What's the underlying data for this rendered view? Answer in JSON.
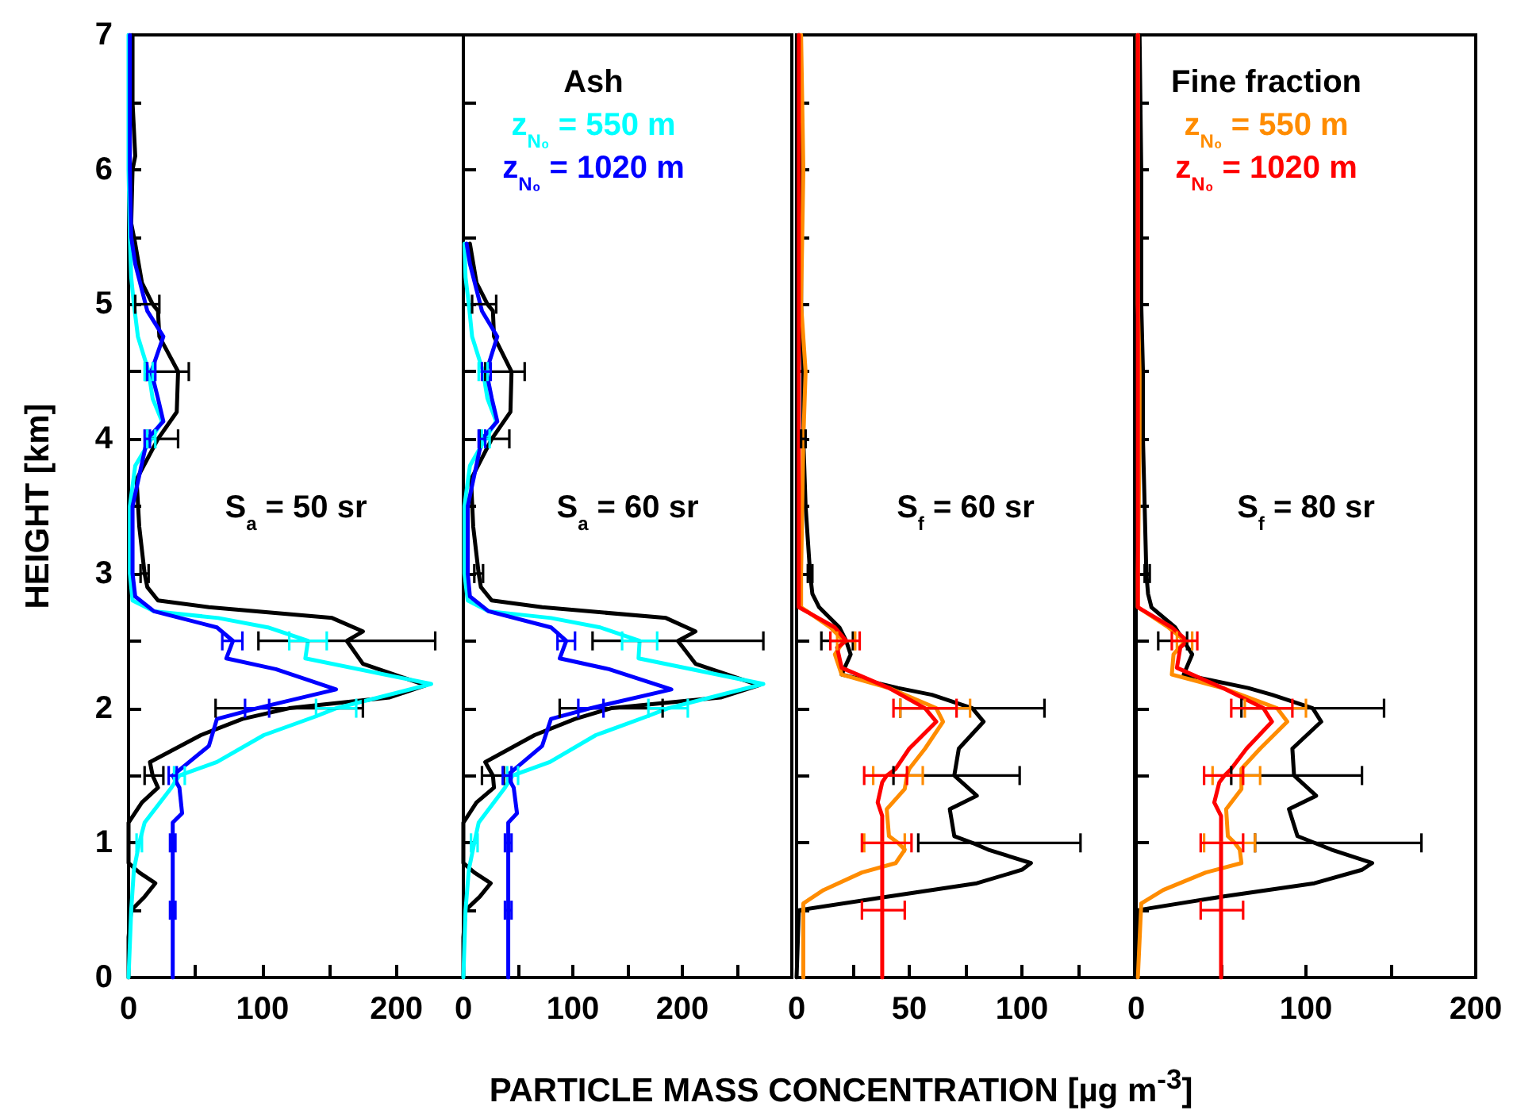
{
  "chart_data": [
    {
      "type": "line",
      "marker": "none",
      "xlabel": "PARTICLE MASS CONCENTRATION [µg m$^{-3}$]",
      "ylabel": "HEIGHT [km]",
      "annotations": [
        "S$_{a}$ = 50 sr"
      ],
      "xlim": [
        0,
        250
      ],
      "xticks": [
        0,
        {
          "value": 50,
          "label": null
        },
        100,
        {
          "value": 150,
          "label": null
        },
        200,
        {
          "value": 250,
          "label": null
        }
      ],
      "ylim": [
        0,
        7
      ],
      "yticks": [
        0,
        {
          "value": 0.5,
          "label": null
        },
        1,
        {
          "value": 1.5,
          "label": null
        },
        2,
        {
          "value": 2.5,
          "label": null
        },
        3,
        {
          "value": 3.5,
          "label": null
        },
        4,
        {
          "value": 4.5,
          "label": null
        },
        5,
        {
          "value": 5.5,
          "label": null
        },
        6,
        {
          "value": 6.5,
          "label": null
        },
        7
      ],
      "series": [
        {
          "color": "#000000",
          "values": [
            0,
            0.3,
            0.5,
            0.6,
            0.7,
            0.78,
            0.85,
            1,
            1.15,
            1.3,
            1.41,
            1.5,
            1.6,
            1.8,
            1.92,
            2,
            2.08,
            2.17,
            2.33,
            2.5,
            2.57,
            2.67,
            2.75,
            2.8,
            2.9,
            3,
            3.35,
            3.7,
            4,
            4.2,
            4.5,
            4.76,
            4.95,
            5,
            5.16,
            5.45,
            5.6,
            6,
            6.1,
            6.5,
            7
          ],
          "x": [
            0,
            0,
            2,
            12,
            20,
            8,
            0,
            0,
            0,
            10,
            22,
            18,
            16,
            54,
            85,
            120,
            195,
            222,
            175,
            163,
            175,
            152,
            60,
            22,
            14,
            12,
            8,
            6,
            22,
            36,
            37,
            23,
            22,
            18,
            10,
            5,
            2,
            3,
            5,
            3,
            3
          ],
          "xerrors": [
            null,
            null,
            null,
            null,
            null,
            null,
            null,
            null,
            null,
            null,
            null,
            [
              12,
              26
            ],
            null,
            null,
            null,
            [
              65,
              175
            ],
            null,
            null,
            null,
            [
              97,
              229
            ],
            null,
            null,
            null,
            null,
            null,
            [
              9,
              15
            ],
            null,
            null,
            [
              14,
              37
            ],
            null,
            [
              13,
              45
            ],
            null,
            null,
            [
              5,
              23
            ],
            null,
            null,
            null,
            null,
            null,
            null,
            null
          ]
        },
        {
          "color": "#00ffff",
          "values": [
            0,
            0.5,
            0.8,
            1,
            1.15,
            1.41,
            1.5,
            1.6,
            1.8,
            1.94,
            2,
            2.18,
            2.37,
            2.5,
            2.6,
            2.67,
            2.72,
            2.8,
            3,
            3.5,
            3.8,
            4,
            4.13,
            4.3,
            4.5,
            4.76,
            5,
            5.2,
            5.5,
            6,
            7
          ],
          "x": [
            0,
            2,
            4,
            8,
            12,
            32,
            38,
            66,
            101,
            140,
            155,
            226,
            132,
            134,
            104,
            67,
            19,
            3,
            1,
            1,
            5,
            17,
            25,
            18,
            15,
            7,
            4,
            2,
            1,
            0,
            0
          ],
          "xerrors": [
            null,
            null,
            null,
            [
              6,
              10
            ],
            null,
            null,
            [
              34,
              42
            ],
            null,
            null,
            null,
            [
              140,
              170
            ],
            null,
            null,
            [
              120,
              148
            ],
            null,
            null,
            null,
            null,
            null,
            null,
            null,
            [
              14,
              20
            ],
            null,
            null,
            [
              12,
              18
            ],
            null,
            null,
            null,
            null,
            null,
            null
          ]
        },
        {
          "color": "#0000ff",
          "values": [
            0,
            0.5,
            1,
            1.15,
            1.22,
            1.41,
            1.5,
            1.72,
            1.92,
            2,
            2.14,
            2.29,
            2.37,
            2.5,
            2.6,
            2.72,
            2.83,
            3,
            3.5,
            4,
            4.13,
            4.3,
            4.5,
            4.76,
            4.95,
            5.3,
            5.5,
            6,
            7
          ],
          "x": [
            33,
            33,
            33,
            33,
            40,
            38,
            33,
            60,
            66,
            96,
            155,
            110,
            73,
            78,
            66,
            19,
            5,
            3,
            3,
            14,
            26,
            22,
            17,
            26,
            14,
            5,
            2,
            1,
            1
          ],
          "xerrors": [
            null,
            [
              31,
              35
            ],
            [
              31,
              35
            ],
            null,
            null,
            null,
            [
              30,
              36
            ],
            null,
            null,
            [
              87,
              105
            ],
            null,
            null,
            null,
            [
              70,
              85
            ],
            null,
            null,
            null,
            null,
            null,
            [
              12,
              16
            ],
            null,
            null,
            [
              14,
              20
            ],
            null,
            null,
            null,
            null,
            null,
            null
          ]
        }
      ]
    },
    {
      "type": "line",
      "legend_title": "Ash",
      "legend": "top left",
      "marker": "none",
      "tick_labels": "x",
      "annotations": [
        "S$_{a}$ = 60 sr"
      ],
      "xlim": [
        0,
        300
      ],
      "xticks": [
        0,
        {
          "value": 50,
          "label": null
        },
        100,
        {
          "value": 150,
          "label": null
        },
        200,
        {
          "value": 250,
          "label": null
        },
        {
          "value": 300,
          "label": null
        }
      ],
      "ylim": [
        0,
        7
      ],
      "yticks": [
        0,
        0.5,
        1,
        1.5,
        2,
        2.5,
        3,
        3.5,
        4,
        4.5,
        5,
        5.5,
        6,
        6.5,
        7
      ],
      "series": [
        {
          "color": "#000000",
          "values": [
            0,
            0.3,
            0.5,
            0.6,
            0.7,
            0.78,
            0.85,
            1.15,
            1.3,
            1.41,
            1.5,
            1.6,
            1.8,
            1.92,
            2,
            2.08,
            2.17,
            2.33,
            2.5,
            2.57,
            2.67,
            2.75,
            2.8,
            2.9,
            3,
            3.35,
            3.7,
            4,
            4.2,
            4.5,
            4.76,
            4.95,
            5,
            5.16,
            5.45
          ],
          "x": [
            0,
            0,
            2,
            15,
            25,
            10,
            0,
            0,
            12,
            28,
            27,
            20,
            65,
            102,
            135,
            235,
            270,
            212,
            196,
            212,
            185,
            72,
            26,
            16,
            14,
            9,
            7,
            26,
            43,
            44,
            28,
            27,
            22,
            12,
            6
          ],
          "xerrors": [
            null,
            null,
            null,
            null,
            null,
            null,
            null,
            null,
            null,
            null,
            [
              17,
              37
            ],
            null,
            null,
            null,
            [
              88,
              182
            ],
            null,
            null,
            null,
            [
              118,
              274
            ],
            null,
            null,
            null,
            null,
            null,
            [
              10,
              18
            ],
            null,
            null,
            [
              15,
              42
            ],
            null,
            [
              20,
              56
            ],
            null,
            null,
            [
              8,
              30
            ],
            null,
            null
          ]
        },
        {
          "name": "z$_{N₀}$ = 550 m",
          "color": "#00ffff",
          "values": [
            0,
            0.5,
            0.8,
            1,
            1.15,
            1.41,
            1.5,
            1.6,
            1.8,
            1.94,
            2,
            2.18,
            2.37,
            2.5,
            2.6,
            2.67,
            2.72,
            2.8,
            3,
            3.5,
            3.8,
            4,
            4.13,
            4.3,
            4.5,
            4.76,
            5,
            5.2,
            5.45
          ],
          "x": [
            0,
            2,
            5,
            10,
            14,
            38,
            45,
            79,
            121,
            168,
            187,
            274,
            160,
            161,
            125,
            80,
            23,
            4,
            1,
            1,
            6,
            20,
            30,
            22,
            18,
            8,
            5,
            2,
            1
          ],
          "xerrors": [
            null,
            null,
            null,
            [
              7,
              13
            ],
            null,
            null,
            [
              40,
              50
            ],
            null,
            null,
            null,
            [
              169,
              205
            ],
            null,
            null,
            [
              145,
              177
            ],
            null,
            null,
            null,
            null,
            null,
            null,
            null,
            [
              17,
              24
            ],
            null,
            null,
            [
              14,
              22
            ],
            null,
            null,
            null,
            null
          ]
        },
        {
          "name": "z$_{N₀}$ = 1020 m",
          "color": "#0000ff",
          "values": [
            0,
            0.5,
            1,
            1.15,
            1.22,
            1.41,
            1.5,
            1.72,
            1.92,
            2,
            2.14,
            2.29,
            2.37,
            2.5,
            2.6,
            2.72,
            2.83,
            3,
            3.5,
            4,
            4.13,
            4.3,
            4.5,
            4.76,
            4.95,
            5.3,
            5.45
          ],
          "x": [
            41,
            41,
            41,
            41,
            49,
            46,
            40,
            72,
            80,
            116,
            190,
            133,
            88,
            94,
            80,
            23,
            6,
            4,
            4,
            17,
            31,
            26,
            21,
            31,
            17,
            6,
            3
          ],
          "xerrors": [
            null,
            [
              38,
              44
            ],
            [
              38,
              44
            ],
            null,
            null,
            null,
            [
              36,
              44
            ],
            null,
            null,
            [
              105,
              128
            ],
            null,
            null,
            null,
            [
              86,
              102
            ],
            null,
            null,
            null,
            null,
            null,
            [
              14,
              20
            ],
            null,
            null,
            [
              17,
              25
            ],
            null,
            null,
            null,
            null
          ]
        }
      ]
    },
    {
      "type": "line",
      "marker": "none",
      "tick_labels": "x",
      "annotations": [
        "S$_{f}$ = 60 sr"
      ],
      "xlim": [
        0,
        150
      ],
      "xticks": [
        0,
        {
          "value": 25,
          "label": null
        },
        50,
        {
          "value": 75,
          "label": null
        },
        100,
        {
          "value": 125,
          "label": null
        },
        {
          "value": 150,
          "label": null
        }
      ],
      "ylim": [
        0,
        7
      ],
      "yticks": [
        0,
        0.5,
        1,
        1.5,
        2,
        2.5,
        3,
        3.5,
        4,
        4.5,
        5,
        5.5,
        6,
        6.5,
        7
      ],
      "series": [
        {
          "color": "#000000",
          "values": [
            0,
            0.5,
            0.6,
            0.7,
            0.8,
            0.85,
            0.95,
            1,
            1.05,
            1.25,
            1.35,
            1.5,
            1.7,
            1.9,
            2,
            2.1,
            2.15,
            2.25,
            2.4,
            2.5,
            2.6,
            2.75,
            2.85,
            3,
            3.5,
            4,
            4.5,
            5,
            6,
            7
          ],
          "x": [
            0,
            1,
            40,
            80,
            100,
            104,
            85,
            78,
            70,
            68,
            80,
            70,
            72,
            83,
            78,
            60,
            45,
            20,
            24,
            22,
            19,
            10,
            7,
            6,
            4,
            3,
            3,
            2,
            2,
            1
          ],
          "xerrors": [
            null,
            null,
            null,
            null,
            null,
            null,
            null,
            [
              54,
              126
            ],
            null,
            null,
            null,
            [
              43,
              99
            ],
            null,
            null,
            [
              46,
              110
            ],
            null,
            null,
            null,
            null,
            [
              11,
              25
            ],
            null,
            null,
            null,
            [
              5,
              7
            ],
            null,
            [
              2,
              4
            ],
            null,
            null,
            null,
            null
          ]
        },
        {
          "color": "#ff8c00",
          "values": [
            0,
            0.55,
            0.65,
            0.78,
            0.85,
            0.95,
            1,
            1.05,
            1.25,
            1.4,
            1.5,
            1.55,
            1.7,
            1.9,
            2,
            2.15,
            2.25,
            2.4,
            2.5,
            2.6,
            2.75,
            3,
            4,
            4.5,
            5,
            6,
            7
          ],
          "x": [
            3,
            3,
            12,
            29,
            44,
            48,
            45,
            41,
            40,
            48,
            49,
            50,
            57,
            65,
            62,
            41,
            20,
            17,
            21,
            15,
            2,
            2,
            3,
            4,
            2,
            3,
            2
          ],
          "xerrors": [
            null,
            null,
            null,
            null,
            null,
            null,
            [
              30,
              48
            ],
            null,
            null,
            null,
            [
              34,
              56
            ],
            null,
            null,
            null,
            [
              46,
              77
            ],
            null,
            null,
            null,
            [
              18,
              26
            ],
            null,
            null,
            null,
            null,
            null,
            null,
            null,
            null
          ]
        },
        {
          "color": "#ff0000",
          "values": [
            0,
            0.5,
            1,
            1.2,
            1.3,
            1.45,
            1.5,
            1.55,
            1.7,
            1.9,
            2,
            2.15,
            2.3,
            2.45,
            2.5,
            2.6,
            2.75,
            3,
            4,
            5,
            7
          ],
          "x": [
            38,
            38,
            38,
            38,
            36,
            38,
            40,
            44,
            50,
            62,
            57,
            41,
            20,
            18,
            22,
            17,
            1,
            1,
            1,
            1,
            1
          ],
          "xerrors": [
            null,
            [
              29,
              48
            ],
            [
              29,
              51
            ],
            null,
            null,
            null,
            [
              30,
              49
            ],
            null,
            null,
            null,
            [
              43,
              71
            ],
            null,
            null,
            null,
            [
              15,
              28
            ],
            null,
            null,
            null,
            null,
            null,
            null
          ]
        }
      ]
    },
    {
      "type": "line",
      "legend_title": "Fine fraction",
      "legend": "top left",
      "marker": "none",
      "tick_labels": "x",
      "annotations": [
        "S$_{f}$ = 80 sr"
      ],
      "xlim": [
        0,
        200
      ],
      "xticks": [
        0,
        {
          "value": 50,
          "label": null
        },
        100,
        {
          "value": 150,
          "label": null
        },
        200
      ],
      "ylim": [
        0,
        7
      ],
      "yticks": [
        0,
        0.5,
        1,
        1.5,
        2,
        2.5,
        3,
        3.5,
        4,
        4.5,
        5,
        5.5,
        6,
        6.5,
        7
      ],
      "series": [
        {
          "color": "#000000",
          "values": [
            0,
            0.5,
            0.6,
            0.7,
            0.8,
            0.85,
            0.95,
            1,
            1.05,
            1.25,
            1.35,
            1.5,
            1.7,
            1.9,
            2,
            2.1,
            2.15,
            2.25,
            2.4,
            2.5,
            2.6,
            2.75,
            2.85,
            3,
            3.5,
            4,
            4.5,
            5,
            6,
            7
          ],
          "x": [
            0,
            1,
            50,
            105,
            133,
            139,
            115,
            105,
            95,
            90,
            106,
            93,
            92,
            109,
            104,
            80,
            66,
            28,
            33,
            28,
            23,
            9,
            7,
            6,
            5,
            4,
            4,
            3,
            3,
            2
          ],
          "xerrors": [
            null,
            null,
            null,
            null,
            null,
            null,
            null,
            [
              70,
              168
            ],
            null,
            null,
            null,
            [
              56,
              133
            ],
            null,
            null,
            [
              62,
              146
            ],
            null,
            null,
            null,
            null,
            [
              13,
              30
            ],
            null,
            null,
            null,
            [
              5,
              8
            ],
            null,
            null,
            null,
            null,
            null,
            null
          ]
        },
        {
          "name": "z$_{N₀}$ = 550 m",
          "color": "#ff8c00",
          "values": [
            0,
            0.55,
            0.65,
            0.78,
            0.85,
            0.95,
            1,
            1.05,
            1.25,
            1.4,
            1.5,
            1.55,
            1.7,
            1.9,
            2,
            2.15,
            2.25,
            2.4,
            2.5,
            2.6,
            2.75,
            3,
            4,
            4.5,
            5,
            6,
            7
          ],
          "x": [
            1,
            3,
            16,
            41,
            62,
            61,
            58,
            54,
            53,
            62,
            62,
            62,
            73,
            89,
            83,
            51,
            21,
            22,
            29,
            19,
            1,
            1,
            2,
            2,
            1,
            1,
            1
          ],
          "xerrors": [
            null,
            null,
            null,
            null,
            null,
            null,
            [
              40,
              70
            ],
            null,
            null,
            null,
            [
              45,
              73
            ],
            null,
            null,
            null,
            [
              64,
              100
            ],
            null,
            null,
            null,
            [
              24,
              33
            ],
            null,
            null,
            null,
            null,
            null,
            null,
            null,
            null
          ]
        },
        {
          "name": "z$_{N₀}$ = 1020 m",
          "color": "#ff0000",
          "values": [
            0,
            0.5,
            1,
            1.2,
            1.3,
            1.45,
            1.5,
            1.55,
            1.7,
            1.9,
            2,
            2.15,
            2.3,
            2.45,
            2.5,
            2.6,
            2.75,
            3,
            4,
            5,
            7
          ],
          "x": [
            50,
            50,
            50,
            50,
            46,
            49,
            52,
            56,
            65,
            80,
            75,
            51,
            24,
            26,
            30,
            21,
            1,
            1,
            1,
            1,
            1
          ],
          "xerrors": [
            null,
            [
              38,
              63
            ],
            [
              38,
              63
            ],
            null,
            null,
            null,
            [
              40,
              63
            ],
            null,
            null,
            null,
            [
              56,
              92
            ],
            null,
            null,
            null,
            [
              21,
              36
            ],
            null,
            null,
            null,
            null,
            null,
            null
          ]
        }
      ]
    }
  ]
}
